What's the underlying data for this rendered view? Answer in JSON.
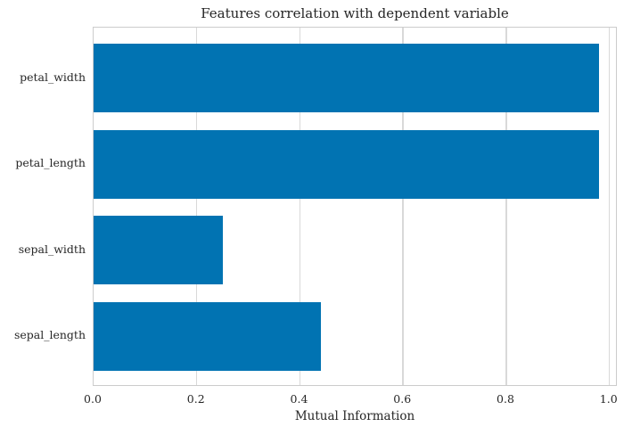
{
  "chart_data": {
    "type": "bar",
    "orientation": "horizontal",
    "title": "Features correlation with dependent variable",
    "xlabel": "Mutual Information",
    "ylabel": "",
    "categories": [
      "petal_width",
      "petal_length",
      "sepal_width",
      "sepal_length"
    ],
    "values": [
      0.98,
      0.98,
      0.25,
      0.44
    ],
    "xlim": [
      0.0,
      1.016
    ],
    "xticks": [
      0.0,
      0.2,
      0.4,
      0.6,
      0.8,
      1.0
    ],
    "xtick_labels": [
      "0.0",
      "0.2",
      "0.4",
      "0.6",
      "0.8",
      "1.0"
    ],
    "grid": "x-only",
    "legend": "none",
    "bar_color": "#0173b2",
    "grid_color": "#d9d9d9",
    "spine_color": "#cccccc",
    "text_color": "#262626",
    "background_color": "#ffffff"
  }
}
